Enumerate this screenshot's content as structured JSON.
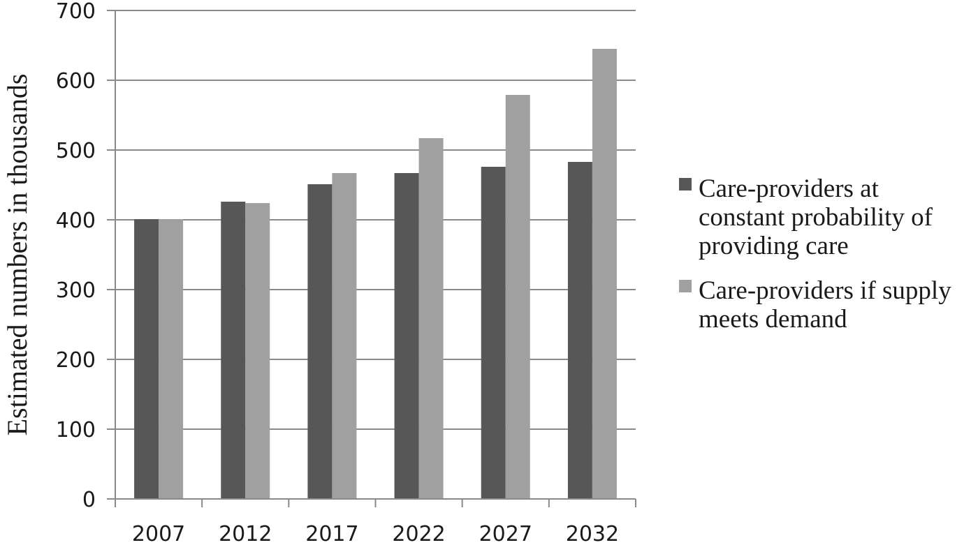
{
  "chart_data": {
    "type": "bar",
    "categories": [
      "2007",
      "2012",
      "2017",
      "2022",
      "2027",
      "2032"
    ],
    "series": [
      {
        "name": "Care-providers at constant probability of providing care",
        "legend_lines": [
          "Care-providers at",
          "constant probability of",
          "providing care"
        ],
        "color": "#575757",
        "values": [
          401,
          426,
          451,
          467,
          476,
          483
        ]
      },
      {
        "name": "Care-providers if supply meets demand",
        "legend_lines": [
          "Care-providers if supply",
          "meets demand"
        ],
        "color": "#a0a0a0",
        "values": [
          401,
          424,
          467,
          517,
          579,
          645
        ]
      }
    ],
    "ylabel": "Estimated numbers in thousands",
    "xlabel": "",
    "title": "",
    "ylim": [
      0,
      700
    ],
    "yticks": [
      "0",
      "100",
      "200",
      "300",
      "400",
      "500",
      "600",
      "700"
    ],
    "grid": true,
    "legend_position": "right"
  }
}
